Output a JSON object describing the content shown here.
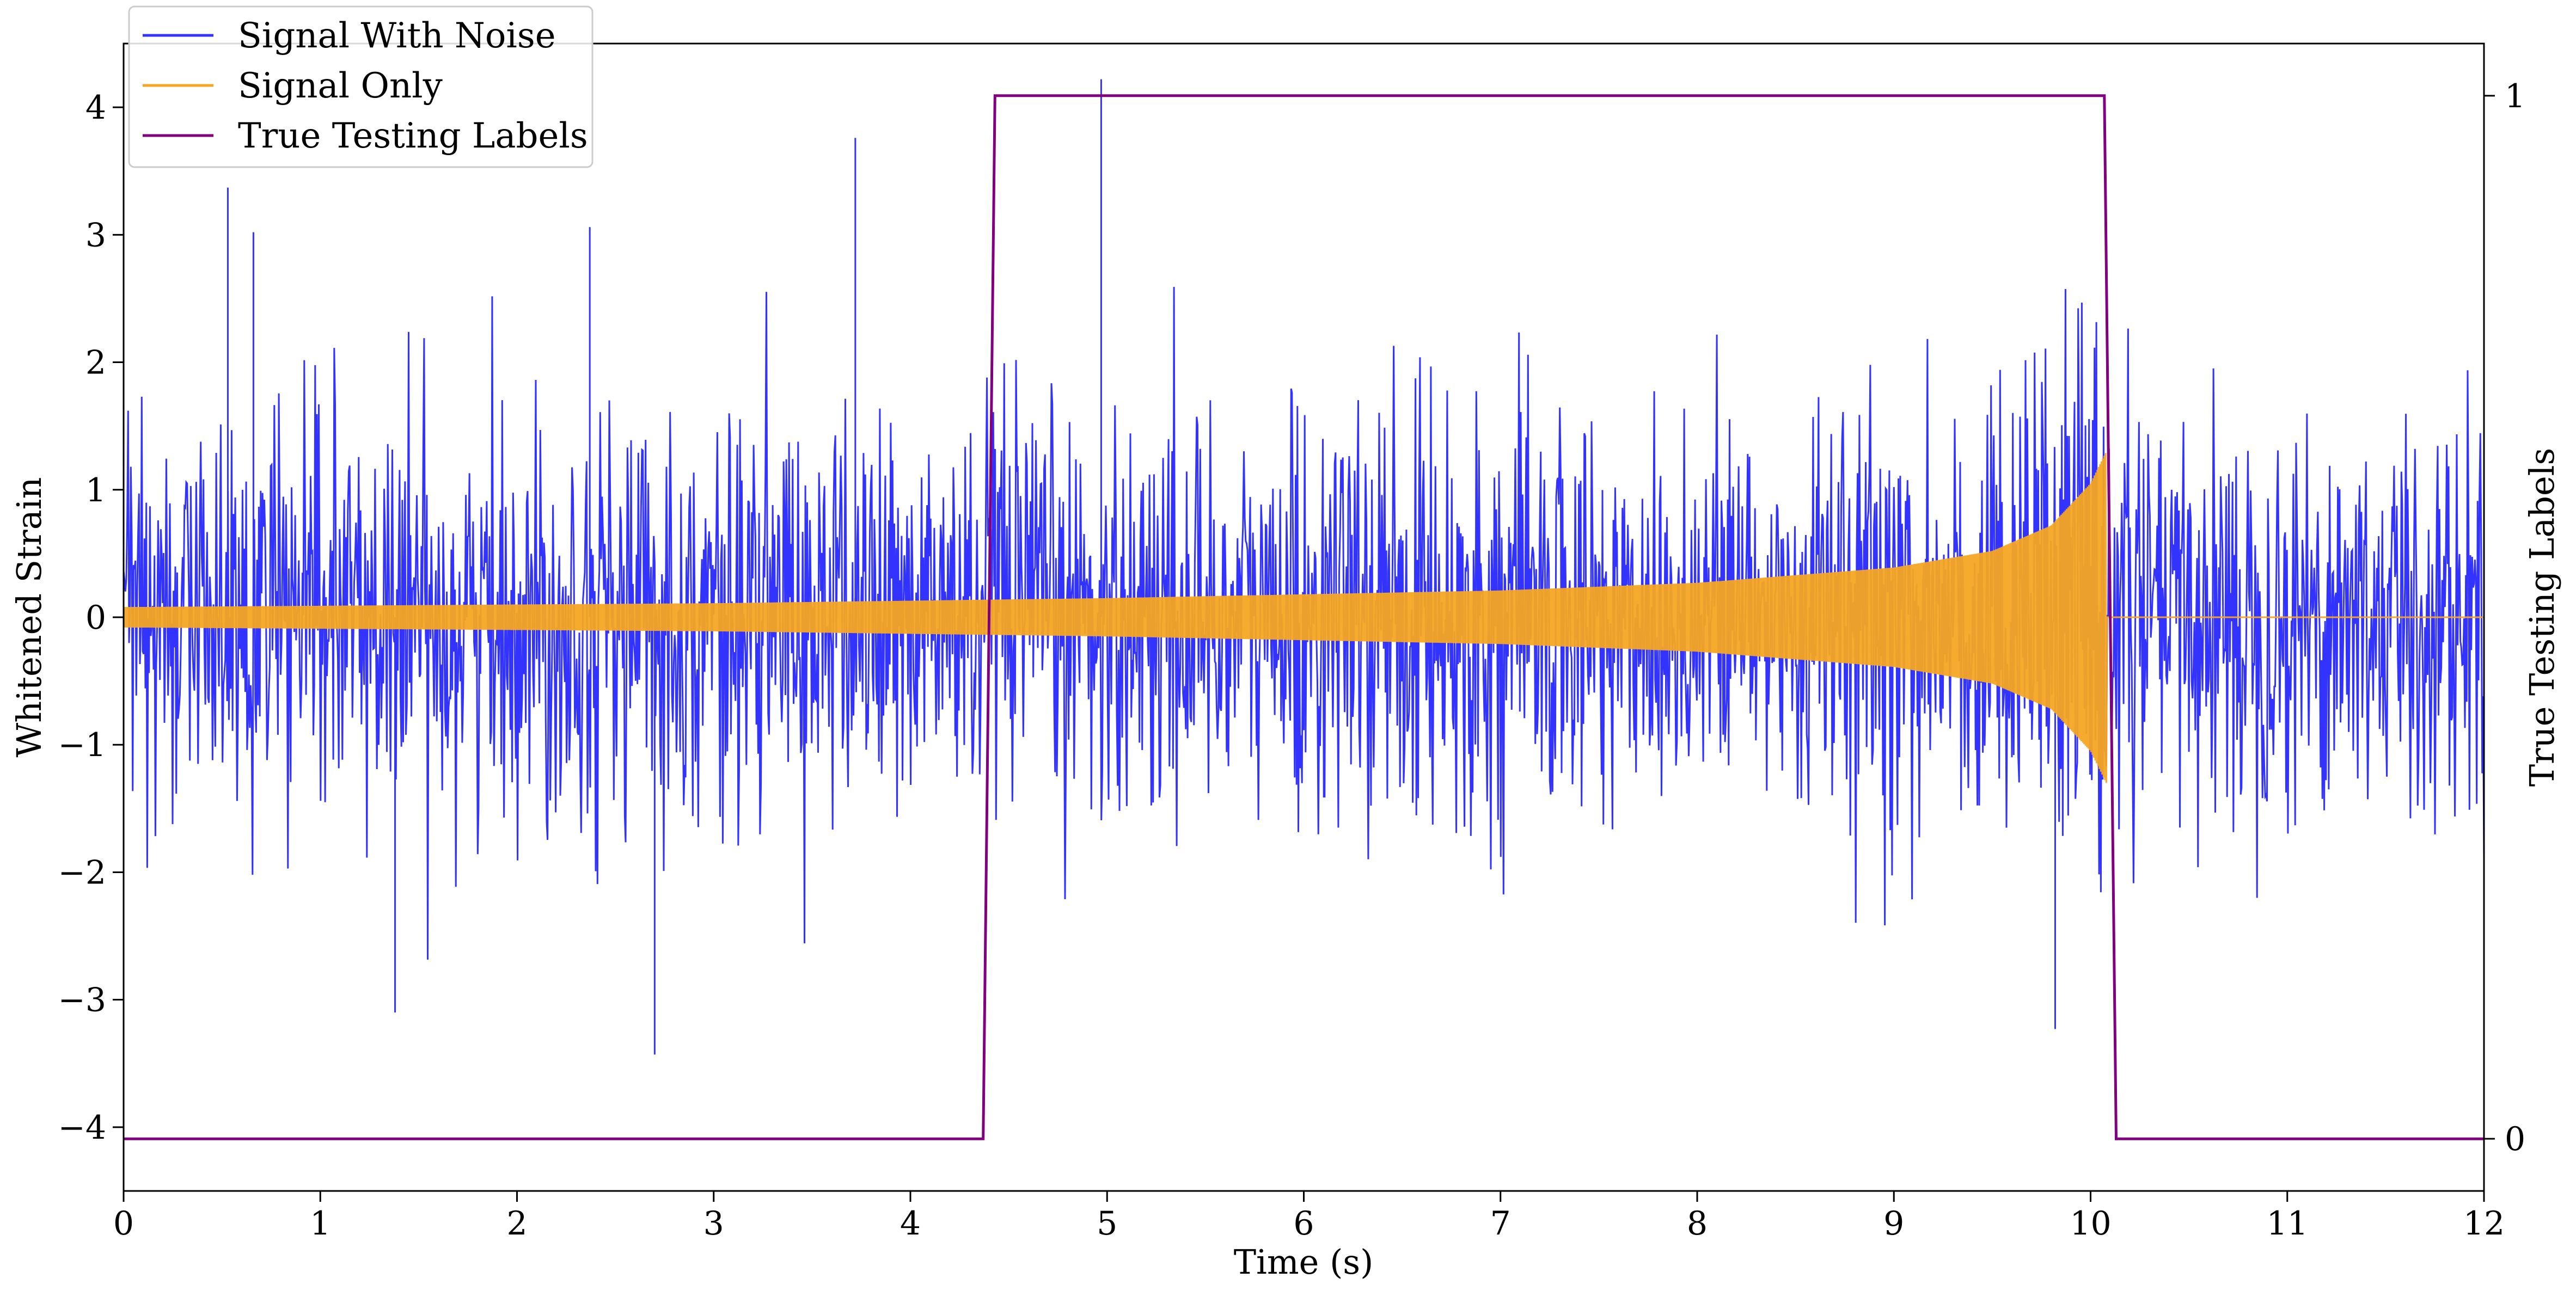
{
  "chart_data": {
    "type": "line",
    "title": "",
    "xlabel": "Time (s)",
    "ylabel": "Whitened Strain",
    "y2label": "True Testing Labels",
    "xlim": [
      0,
      12
    ],
    "ylim": [
      -4.5,
      4.5
    ],
    "y2lim": [
      -0.05,
      1.05
    ],
    "x_ticks": [
      "0",
      "1",
      "2",
      "3",
      "4",
      "5",
      "6",
      "7",
      "8",
      "9",
      "10",
      "11",
      "12"
    ],
    "y_ticks": [
      "−4",
      "−3",
      "−2",
      "−1",
      "0",
      "1",
      "2",
      "3",
      "4"
    ],
    "y2_ticks": [
      "0",
      "1"
    ],
    "legend_position": "upper-left",
    "series": [
      {
        "name": "Signal With Noise",
        "color": "#3333ff",
        "axis": "left",
        "description": "whitened noise plus chirp, roughly spanning -2.5 to 2.5 with isolated peaks",
        "notable_peaks": [
          {
            "x": 0.53,
            "y": 3.37
          },
          {
            "x": 0.66,
            "y": 3.02
          },
          {
            "x": 2.37,
            "y": 3.06
          },
          {
            "x": 3.72,
            "y": 3.76
          },
          {
            "x": 4.97,
            "y": 4.22
          },
          {
            "x": 1.38,
            "y": -3.1
          },
          {
            "x": 2.7,
            "y": -3.43
          },
          {
            "x": 9.82,
            "y": -3.23
          }
        ]
      },
      {
        "name": "Signal Only",
        "color": "#f5a623",
        "axis": "left",
        "description": "inspiral chirp with growing amplitude and frequency, merging near 10.1 s then zero",
        "envelope": {
          "x": [
            0,
            1,
            2,
            3,
            4,
            5,
            6,
            7,
            8,
            9,
            9.5,
            9.8,
            10.0,
            10.08
          ],
          "amplitude": [
            0.08,
            0.09,
            0.1,
            0.11,
            0.13,
            0.15,
            0.18,
            0.21,
            0.27,
            0.39,
            0.52,
            0.72,
            1.05,
            1.3
          ]
        },
        "merger_time": 10.08
      },
      {
        "name": "True Testing Labels",
        "color": "#800080",
        "axis": "right",
        "x": [
          0,
          4.37,
          4.43,
          10.07,
          10.13,
          12
        ],
        "y": [
          0,
          0,
          1,
          1,
          0,
          0
        ]
      }
    ]
  }
}
